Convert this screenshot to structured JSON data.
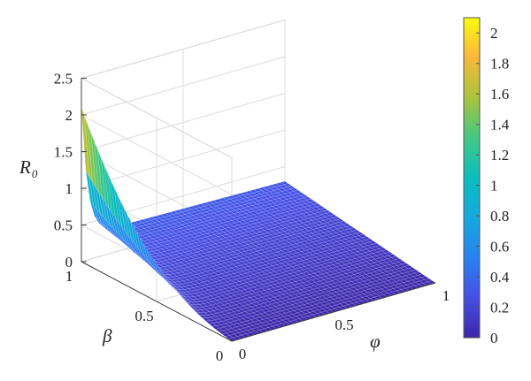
{
  "chart_data": {
    "type": "surface3d",
    "title": "",
    "zlabel": "R",
    "zlabel_subscript": "0",
    "xlabel": "φ",
    "ylabel": "β",
    "xlim": [
      0,
      1
    ],
    "ylim": [
      0,
      1
    ],
    "zlim": [
      0,
      2.5
    ],
    "x_ticks": [
      "0",
      "0.5",
      "1"
    ],
    "y_ticks": [
      "0",
      "0.5",
      "1"
    ],
    "z_ticks": [
      "0",
      "0.5",
      "1",
      "1.5",
      "2",
      "2.5"
    ],
    "colorbar": {
      "range": [
        0,
        2.1
      ],
      "ticks": [
        "0",
        "0.2",
        "0.4",
        "0.6",
        "0.8",
        "1",
        "1.2",
        "1.4",
        "1.6",
        "1.8",
        "2"
      ]
    },
    "grid": true,
    "surface_samples": [
      {
        "phi": 0,
        "beta": 1.0,
        "R0": 2.1
      },
      {
        "phi": 0,
        "beta": 0.75,
        "R0": 1.0
      },
      {
        "phi": 0,
        "beta": 0.5,
        "R0": 0.55
      },
      {
        "phi": 0,
        "beta": 0.25,
        "R0": 0.25
      },
      {
        "phi": 0,
        "beta": 0,
        "R0": 0.0
      },
      {
        "phi": 0.1,
        "beta": 1.0,
        "R0": 0.5
      },
      {
        "phi": 0.5,
        "beta": 1.0,
        "R0": 0.35
      },
      {
        "phi": 1,
        "beta": 1.0,
        "R0": 0.3
      },
      {
        "phi": 1,
        "beta": 0,
        "R0": 0.0
      }
    ]
  }
}
